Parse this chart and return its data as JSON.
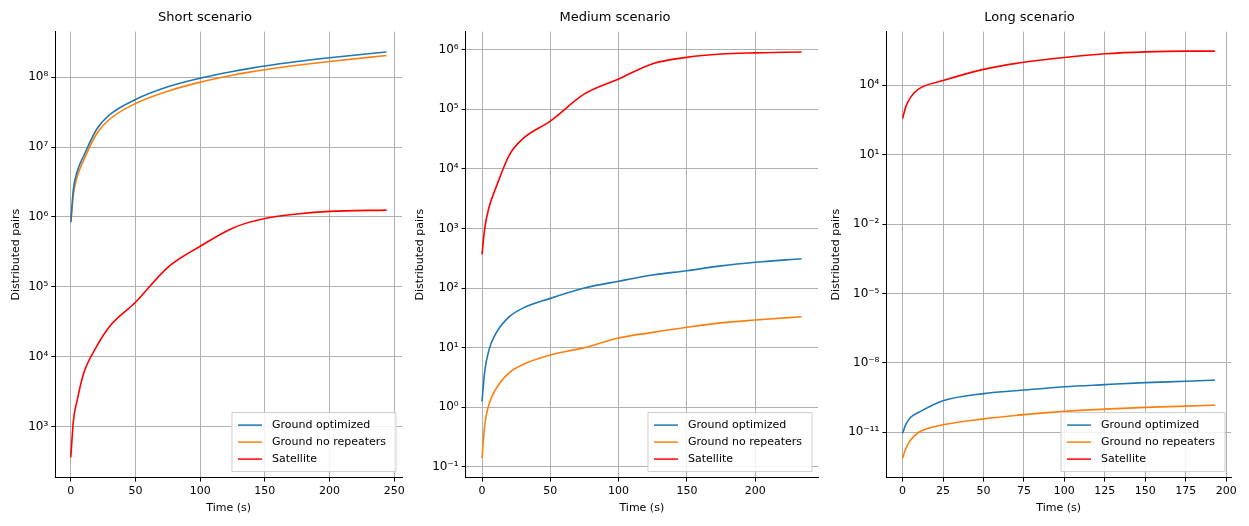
{
  "chart_data": [
    {
      "type": "line",
      "title": "Short scenario",
      "xlabel": "Time (s)",
      "ylabel": "Distributed pairs",
      "log": "y",
      "grid": true,
      "legend": "bottom right",
      "xlim": [
        -12,
        256
      ],
      "xticks": [
        0,
        50,
        100,
        150,
        200,
        250
      ],
      "ylim": [
        185,
        450000000
      ],
      "yticks": [
        {
          "value": 1000,
          "label": "10³"
        },
        {
          "value": 10000,
          "label": "10⁴"
        },
        {
          "value": 100000,
          "label": "10⁵"
        },
        {
          "value": 1000000,
          "label": "10⁶"
        },
        {
          "value": 10000000,
          "label": "10⁷"
        },
        {
          "value": 100000000,
          "label": "10⁸"
        }
      ],
      "x": [
        0,
        2,
        5,
        10,
        20,
        30,
        50,
        75,
        100,
        125,
        150,
        175,
        200,
        244
      ],
      "series": [
        {
          "name": "Ground optimized",
          "color": "#1f77b4",
          "values": [
            850000,
            2500000,
            4500000,
            7500000,
            18000000,
            29000000,
            48000000,
            73000000,
            97000000,
            121000000,
            145000000,
            168000000,
            190000000,
            230000000
          ]
        },
        {
          "name": "Ground no repeaters",
          "color": "#ff7f0e",
          "values": [
            830000,
            2100000,
            3800000,
            6500000,
            15500000,
            25000000,
            42000000,
            63000000,
            85000000,
            107000000,
            128000000,
            148000000,
            168000000,
            205000000
          ]
        },
        {
          "name": "Satellite",
          "color": "#ff0000",
          "values": [
            360,
            1200,
            2400,
            5800,
            14000,
            27000,
            60000,
            190000,
            380000,
            690000,
            950000,
            1100000,
            1200000,
            1250000
          ]
        }
      ]
    },
    {
      "type": "line",
      "title": "Medium scenario",
      "xlabel": "Time (s)",
      "ylabel": "Distributed pairs",
      "log": "y",
      "grid": true,
      "legend": "bottom right",
      "xlim": [
        -12,
        246
      ],
      "xticks": [
        0,
        50,
        100,
        150,
        200
      ],
      "ylim": [
        0.066,
        2000000
      ],
      "yticks": [
        {
          "value": 0.1,
          "label": "10⁻¹"
        },
        {
          "value": 1,
          "label": "10⁰"
        },
        {
          "value": 10,
          "label": "10¹"
        },
        {
          "value": 100,
          "label": "10²"
        },
        {
          "value": 1000,
          "label": "10³"
        },
        {
          "value": 10000,
          "label": "10⁴"
        },
        {
          "value": 100000,
          "label": "10⁵"
        },
        {
          "value": 1000000,
          "label": "10⁶"
        }
      ],
      "x": [
        0,
        2,
        5,
        10,
        20,
        30,
        50,
        75,
        100,
        125,
        150,
        175,
        200,
        234
      ],
      "series": [
        {
          "name": "Ground optimized",
          "color": "#1f77b4",
          "values": [
            1.25,
            4,
            9,
            17,
            33,
            46,
            67,
            100,
            130,
            165,
            195,
            235,
            270,
            310
          ]
        },
        {
          "name": "Ground no repeaters",
          "color": "#ff7f0e",
          "values": [
            0.14,
            0.5,
            1.1,
            2,
            3.8,
            5.2,
            7.5,
            10,
            14.5,
            18,
            22,
            26,
            29,
            33
          ]
        },
        {
          "name": "Satellite",
          "color": "#ff0000",
          "values": [
            365,
            1000,
            2200,
            4700,
            17000,
            32000,
            63000,
            180000,
            320000,
            580000,
            740000,
            840000,
            880000,
            910000
          ]
        }
      ]
    },
    {
      "type": "line",
      "title": "Long scenario",
      "xlabel": "Time (s)",
      "ylabel": "Distributed pairs",
      "log": "y",
      "grid": true,
      "legend": "bottom right",
      "xlim": [
        -10,
        203
      ],
      "xticks": [
        0,
        25,
        50,
        75,
        100,
        125,
        150,
        175,
        200
      ],
      "ylim": [
        1.1e-13,
        2100000
      ],
      "yticks": [
        {
          "value": 1e-11,
          "label": "10⁻¹¹"
        },
        {
          "value": 1e-08,
          "label": "10⁻⁸"
        },
        {
          "value": 1e-05,
          "label": "10⁻⁵"
        },
        {
          "value": 0.01,
          "label": "10⁻²"
        },
        {
          "value": 10,
          "label": "10¹"
        },
        {
          "value": 10000,
          "label": "10⁴"
        }
      ],
      "x": [
        0,
        2,
        5,
        10,
        25,
        50,
        75,
        100,
        125,
        150,
        175,
        193
      ],
      "series": [
        {
          "name": "Ground optimized",
          "color": "#1f77b4",
          "values": [
            9e-12,
            2.2e-11,
            4.5e-11,
            7.3e-11,
            2.3e-10,
            4.7e-10,
            6.7e-10,
            9.3e-10,
            1.15e-09,
            1.4e-09,
            1.6e-09,
            1.8e-09
          ]
        },
        {
          "name": "Ground no repeaters",
          "color": "#ff7f0e",
          "values": [
            7.6e-13,
            2e-12,
            4.6e-12,
            1e-11,
            2.1e-11,
            3.8e-11,
            5.8e-11,
            8e-11,
            1e-10,
            1.2e-10,
            1.35e-10,
            1.5e-10
          ]
        },
        {
          "name": "Satellite",
          "color": "#ff0000",
          "values": [
            370,
            1200,
            3100,
            7000,
            16000,
            49000,
            100000,
            160000,
            230000,
            280000,
            300000,
            300000
          ]
        }
      ]
    }
  ]
}
